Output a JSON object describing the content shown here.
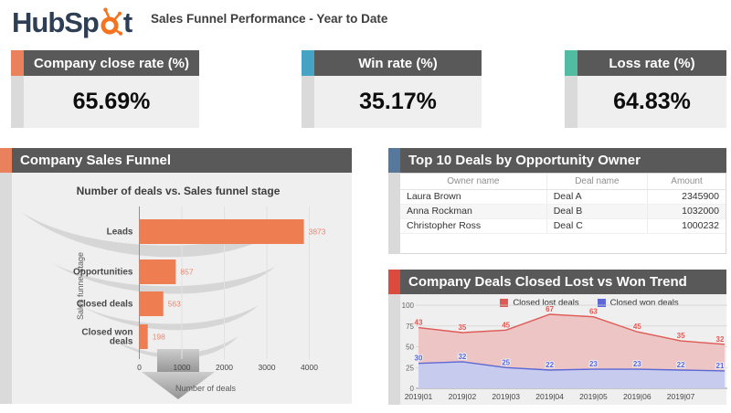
{
  "brand": {
    "name": "HubSpot",
    "logo_part1": "HubSp",
    "logo_part2": "t",
    "logo_navy": "#2e3e54",
    "logo_orange": "#f5731f"
  },
  "header": {
    "title": "Sales Funnel Performance - Year to Date"
  },
  "kpis": [
    {
      "label": "Company close rate (%)",
      "value": "65.69%",
      "accent": "#e8815c"
    },
    {
      "label": "Win rate (%)",
      "value": "35.17%",
      "accent": "#45a3c5"
    },
    {
      "label": "Loss rate (%)",
      "value": "64.83%",
      "accent": "#52bca3"
    }
  ],
  "funnel_panel": {
    "title": "Company Sales Funnel",
    "accent": "#e8815c"
  },
  "table_panel": {
    "title": "Top 10 Deals by Opportunity Owner",
    "accent": "#56789b",
    "columns": [
      "Owner name",
      "Deal name",
      "Amount"
    ],
    "rows": [
      [
        "Laura Brown",
        "Deal A",
        "2345900"
      ],
      [
        "Anna Rockman",
        "Deal B",
        "1032000"
      ],
      [
        "Christopher Ross",
        "Deal C",
        "1000232"
      ]
    ]
  },
  "trend_panel": {
    "title": "Company Deals Closed Lost vs Won Trend",
    "accent": "#db4a3f"
  },
  "chart_data": [
    {
      "type": "bar",
      "orientation": "horizontal",
      "title": "Number of deals vs. Sales funnel stage",
      "categories": [
        "Leads",
        "Opportunities",
        "Closed deals",
        "Closed won deals"
      ],
      "values": [
        3873,
        857,
        563,
        198
      ],
      "xlabel": "Number of deals",
      "ylabel": "Sales funnel stage",
      "xlim": [
        0,
        4000
      ],
      "xticks": [
        0,
        1000,
        2000,
        3000,
        4000
      ],
      "grid": true,
      "bar_color": "#ef7d52",
      "label_color": "#f0846c",
      "background_shape": "gray-funnel-with-arrow"
    },
    {
      "type": "area",
      "stacked": true,
      "title": "Company Deals Closed Lost vs Won Trend",
      "x": [
        "2019|01",
        "2019|02",
        "2019|03",
        "2019|04",
        "2019|05",
        "2019|06",
        "2019|07",
        ""
      ],
      "series": [
        {
          "name": "Closed lost deals",
          "color": "#de5a55",
          "fill": "#ecc5c4",
          "stack": "top",
          "values": [
            43,
            35,
            45,
            67,
            63,
            45,
            35,
            32
          ]
        },
        {
          "name": "Closed won deals",
          "color": "#5c68d5",
          "fill": "#c7ccee",
          "stack": "bottom",
          "values": [
            30,
            32,
            25,
            22,
            23,
            23,
            22,
            21
          ]
        }
      ],
      "ylim": [
        0,
        100
      ],
      "yticks": [
        0,
        25,
        50,
        75,
        100
      ],
      "legend_position": "top",
      "grid": true
    }
  ]
}
